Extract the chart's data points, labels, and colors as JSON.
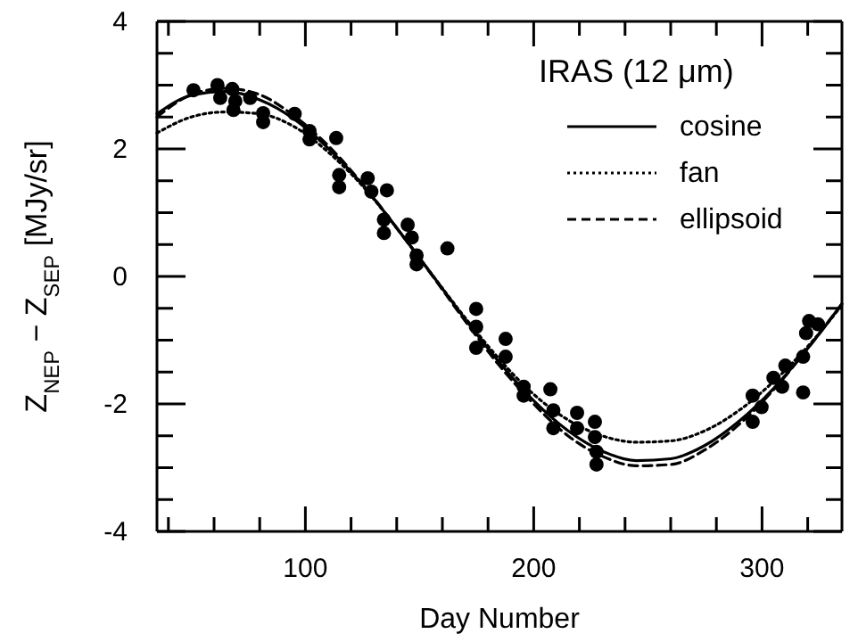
{
  "chart_data": {
    "type": "line",
    "xlabel": "Day Number",
    "ylabel": "Z$_{NEP}$ − Z$_{SEP}$   [MJy/sr]",
    "legend_title": "IRAS (12 μm)",
    "legend": "top right",
    "xlim": [
      35,
      335
    ],
    "ylim": [
      -4,
      4
    ],
    "xticks": [
      {
        "value": 40,
        "label": null
      },
      {
        "value": 60,
        "label": null
      },
      {
        "value": 80,
        "label": null
      },
      100,
      {
        "value": 120,
        "label": null
      },
      {
        "value": 140,
        "label": null
      },
      {
        "value": 160,
        "label": null
      },
      {
        "value": 180,
        "label": null
      },
      200,
      {
        "value": 220,
        "label": null
      },
      {
        "value": 240,
        "label": null
      },
      {
        "value": 260,
        "label": null
      },
      {
        "value": 280,
        "label": null
      },
      300,
      {
        "value": 320,
        "label": null
      }
    ],
    "yticks": [
      -4,
      {
        "value": -3.5,
        "label": null
      },
      {
        "value": -3,
        "label": null
      },
      {
        "value": -2.5,
        "label": null
      },
      -2,
      {
        "value": -1.5,
        "label": null
      },
      {
        "value": -1,
        "label": null
      },
      {
        "value": -0.5,
        "label": null
      },
      0,
      {
        "value": 0.5,
        "label": null
      },
      {
        "value": 1,
        "label": null
      },
      {
        "value": 1.5,
        "label": null
      },
      2,
      {
        "value": 2.5,
        "label": null
      },
      {
        "value": 3,
        "label": null
      },
      {
        "value": 3.5,
        "label": null
      },
      4
    ],
    "grid": false,
    "series": [
      {
        "type": "scatter",
        "marker": "circle",
        "color": "#000000",
        "x": [
          51,
          61.5,
          62.7,
          68,
          68.5,
          69.3,
          75.8,
          81.5,
          81.5,
          95.3,
          101.8,
          101.8,
          113.5,
          114.8,
          114.8,
          127.3,
          128.9,
          135.7,
          134.4,
          134.4,
          144.8,
          146.6,
          148.7,
          148.7,
          162.2,
          174.8,
          174.8,
          174.8,
          187.7,
          187.7,
          195.6,
          195.6,
          207.3,
          208.6,
          208.6,
          219,
          219,
          226.8,
          226.8,
          227.5,
          227.5,
          295.9,
          295.9,
          299.8,
          305,
          308.8,
          310.2,
          318,
          318,
          319.3,
          320.6,
          324.5
        ],
        "values": [
          2.92,
          3.0,
          2.8,
          2.94,
          2.61,
          2.75,
          2.8,
          2.56,
          2.42,
          2.55,
          2.28,
          2.15,
          2.17,
          1.59,
          1.4,
          1.54,
          1.33,
          1.35,
          0.89,
          0.68,
          0.81,
          0.61,
          0.33,
          0.19,
          0.44,
          -0.51,
          -0.79,
          -1.12,
          -0.98,
          -1.26,
          -1.73,
          -1.87,
          -1.77,
          -2.1,
          -2.38,
          -2.14,
          -2.38,
          -2.28,
          -2.52,
          -2.75,
          -2.95,
          -1.87,
          -2.28,
          -2.05,
          -1.59,
          -1.73,
          -1.4,
          -1.82,
          -1.26,
          -0.89,
          -0.7,
          -0.75
        ]
      },
      {
        "name": "cosine",
        "color": "#000000",
        "line_style": "solid",
        "marker": "none",
        "x": [
          35,
          50,
          65,
          80,
          95,
          110,
          125,
          140,
          155,
          170,
          185,
          200,
          215,
          230,
          245,
          260,
          275,
          290,
          305,
          320,
          335
        ],
        "values": [
          2.55,
          2.84,
          2.9,
          2.77,
          2.47,
          2.01,
          1.44,
          0.76,
          0.05,
          -0.67,
          -1.35,
          -1.95,
          -2.42,
          -2.74,
          -2.89,
          -2.86,
          -2.65,
          -2.27,
          -1.76,
          -1.13,
          -0.43
        ]
      },
      {
        "name": "fan",
        "color": "#000000",
        "line_style": "dotted",
        "marker": "none",
        "x": [
          35,
          50,
          65,
          80,
          95,
          110,
          125,
          140,
          155,
          170,
          185,
          200,
          215,
          230,
          245,
          260,
          275,
          290,
          305,
          320,
          335
        ],
        "values": [
          2.25,
          2.5,
          2.58,
          2.55,
          2.35,
          1.95,
          1.42,
          0.76,
          0.05,
          -0.65,
          -1.3,
          -1.85,
          -2.25,
          -2.5,
          -2.6,
          -2.58,
          -2.42,
          -2.1,
          -1.65,
          -1.1,
          -0.45
        ]
      },
      {
        "name": "ellipsoid",
        "color": "#000000",
        "line_style": "dashed",
        "marker": "none",
        "x": [
          35,
          50,
          65,
          80,
          95,
          110,
          125,
          140,
          155,
          170,
          185,
          200,
          215,
          230,
          245,
          260,
          275,
          290,
          305,
          320,
          335
        ],
        "values": [
          2.5,
          2.85,
          2.95,
          2.85,
          2.52,
          2.05,
          1.45,
          0.76,
          0.04,
          -0.7,
          -1.4,
          -2.0,
          -2.5,
          -2.82,
          -2.97,
          -2.95,
          -2.72,
          -2.32,
          -1.78,
          -1.13,
          -0.43
        ]
      }
    ]
  }
}
